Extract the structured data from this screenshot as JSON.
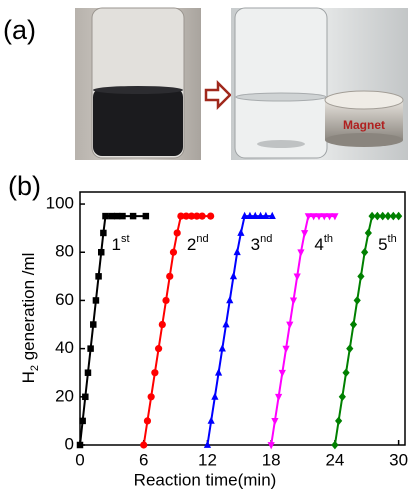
{
  "panel_a": {
    "label": "(a)",
    "magnet_label": "Magnet"
  },
  "panel_b": {
    "label": "(b)"
  },
  "chart_data": {
    "type": "line",
    "xlabel": "Reaction time(min)",
    "ylabel": [
      "H",
      "2",
      " generation /ml"
    ],
    "xlim": [
      0,
      30.6
    ],
    "ylim": [
      0,
      105
    ],
    "xticks": [
      0,
      6,
      12,
      18,
      24,
      30
    ],
    "yticks": [
      0,
      20,
      40,
      60,
      80,
      100
    ],
    "annotations": [
      {
        "text": "1",
        "sup": "st"
      },
      {
        "text": "2",
        "sup": "nd"
      },
      {
        "text": "3",
        "sup": "nd"
      },
      {
        "text": "4",
        "sup": "th"
      },
      {
        "text": "5",
        "sup": "th"
      }
    ],
    "series": [
      {
        "color": "#000000",
        "marker": "square",
        "x": [
          0,
          0.25,
          0.5,
          0.75,
          1,
          1.25,
          1.5,
          1.75,
          2,
          2.2,
          2.4,
          3,
          3.5,
          4,
          5,
          6.2
        ],
        "values": [
          0,
          10,
          20,
          30,
          40,
          50,
          60,
          70,
          80,
          88,
          95,
          95,
          95,
          95,
          95,
          95
        ]
      },
      {
        "color": "#ff0000",
        "marker": "circle",
        "x": [
          6,
          6.35,
          6.7,
          7.05,
          7.4,
          7.75,
          8.1,
          8.45,
          8.8,
          9.15,
          9.5,
          10,
          10.5,
          11,
          11.5,
          12.3
        ],
        "values": [
          0,
          10,
          20,
          30,
          40,
          50,
          60,
          70,
          80,
          88,
          95,
          95,
          95,
          95,
          95,
          95
        ]
      },
      {
        "color": "#0000ff",
        "marker": "triangle",
        "x": [
          12,
          12.35,
          12.7,
          13.05,
          13.4,
          13.75,
          14.1,
          14.45,
          14.8,
          15.15,
          15.5,
          16,
          16.5,
          17,
          17.5,
          18.1
        ],
        "values": [
          0,
          10,
          20,
          30,
          40,
          50,
          60,
          70,
          80,
          88,
          95,
          95,
          95,
          95,
          95,
          95
        ]
      },
      {
        "color": "#ff00ff",
        "marker": "triangle-down",
        "x": [
          18,
          18.35,
          18.7,
          19.05,
          19.4,
          19.75,
          20.1,
          20.45,
          20.8,
          21.15,
          21.5,
          22,
          22.5,
          23,
          23.5,
          24
        ],
        "values": [
          0,
          10,
          20,
          30,
          40,
          50,
          60,
          70,
          80,
          88,
          95,
          95,
          95,
          95,
          95,
          95
        ]
      },
      {
        "color": "#008000",
        "marker": "diamond",
        "x": [
          24,
          24.35,
          24.7,
          25.05,
          25.4,
          25.75,
          26.1,
          26.45,
          26.8,
          27.15,
          27.5,
          28,
          28.5,
          29,
          29.5,
          30
        ],
        "values": [
          0,
          10,
          20,
          30,
          40,
          50,
          60,
          70,
          80,
          88,
          95,
          95,
          95,
          95,
          95,
          95
        ]
      }
    ]
  }
}
